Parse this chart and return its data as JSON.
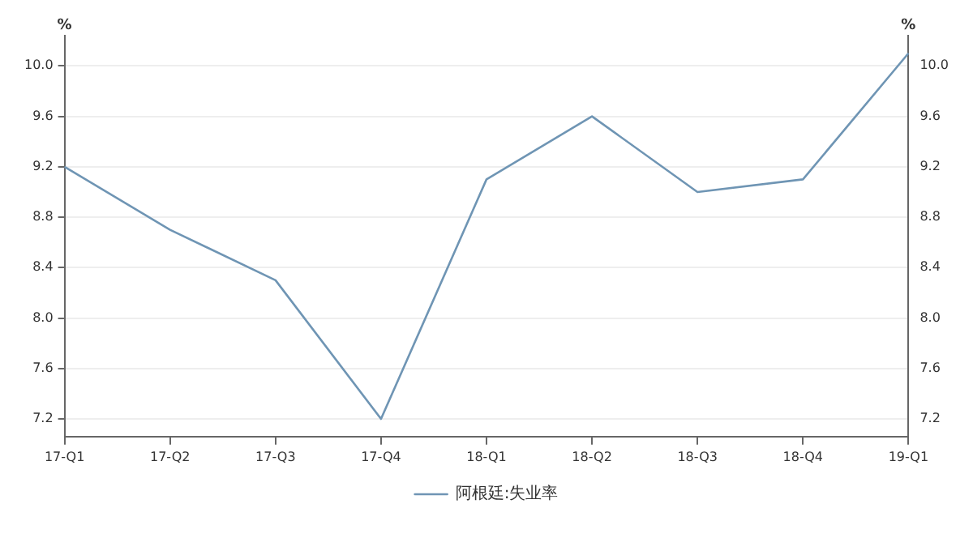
{
  "chart_data": {
    "type": "line",
    "categories": [
      "17-Q1",
      "17-Q2",
      "17-Q3",
      "17-Q4",
      "18-Q1",
      "18-Q2",
      "18-Q3",
      "18-Q4",
      "19-Q1"
    ],
    "series": [
      {
        "name": "阿根廷:失业率",
        "color": "#6f95b4",
        "values": [
          9.2,
          8.7,
          8.3,
          7.2,
          9.1,
          9.6,
          9.0,
          9.1,
          10.1
        ]
      }
    ],
    "ylabel": "%",
    "y2label": "%",
    "ylim": [
      7.06,
      10.24
    ],
    "yticks": [
      {
        "value": 7.2,
        "label": "7.2"
      },
      {
        "value": 7.6,
        "label": "7.6"
      },
      {
        "value": 8.0,
        "label": "8.0"
      },
      {
        "value": 8.4,
        "label": "8.4"
      },
      {
        "value": 8.8,
        "label": "8.8"
      },
      {
        "value": 9.2,
        "label": "9.2"
      },
      {
        "value": 9.6,
        "label": "9.6"
      },
      {
        "value": 10.0,
        "label": "10.0"
      }
    ],
    "y2lim": [
      7.06,
      10.24
    ],
    "y2ticks": [
      {
        "value": 7.2,
        "label": "7.2"
      },
      {
        "value": 7.6,
        "label": "7.6"
      },
      {
        "value": 8.0,
        "label": "8.0"
      },
      {
        "value": 8.4,
        "label": "8.4"
      },
      {
        "value": 8.8,
        "label": "8.8"
      },
      {
        "value": 9.2,
        "label": "9.2"
      },
      {
        "value": 9.6,
        "label": "9.6"
      },
      {
        "value": 10.0,
        "label": "10.0"
      }
    ],
    "grid": "y",
    "legend": "bottom",
    "marker": "none",
    "line_style": "solid"
  }
}
